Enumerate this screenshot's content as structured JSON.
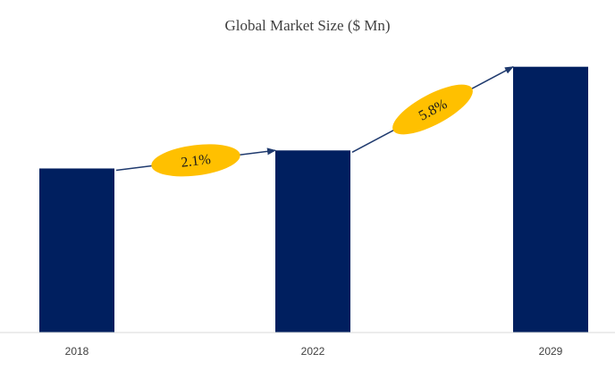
{
  "chart_data": {
    "type": "bar",
    "title": "Global Market Size ($ Mn)",
    "categories": [
      "2018",
      "2022",
      "2029"
    ],
    "values": [
      100,
      111,
      162
    ],
    "ylim": [
      0,
      170
    ],
    "grid": false,
    "bar_color": "#001f5f",
    "annotations": [
      {
        "from": "2018",
        "to": "2022",
        "label": "2.1%"
      },
      {
        "from": "2022",
        "to": "2029",
        "label": "5.8%"
      }
    ],
    "annotation_color": "#ffc000",
    "arrow_color": "#1f3a6e"
  }
}
